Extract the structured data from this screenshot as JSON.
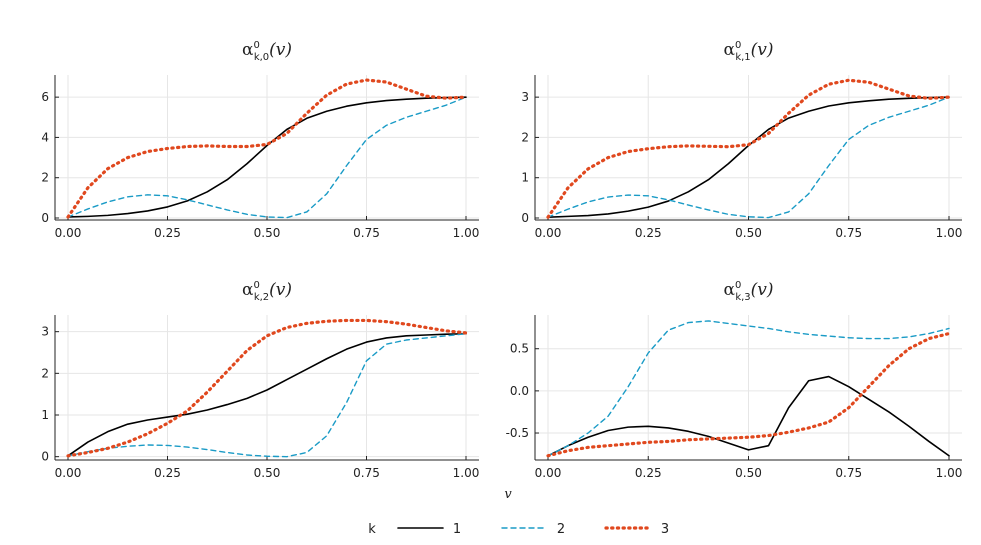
{
  "xlabel": "v",
  "legend": {
    "title": "k",
    "entries": [
      {
        "label": "1",
        "color": "#000000",
        "dash": "solid"
      },
      {
        "label": "2",
        "color": "#1a9bc6",
        "dash": "dashed"
      },
      {
        "label": "3",
        "color": "#e0481e",
        "dash": "dotted"
      }
    ]
  },
  "chart_data": [
    {
      "type": "line",
      "title_base": "α",
      "title_sup": "0",
      "title_sub": "k,0",
      "title_arg": "(v)",
      "xlim": [
        0,
        1
      ],
      "ylim": [
        -0.1,
        7.1
      ],
      "xticks": [
        0,
        0.25,
        0.5,
        0.75,
        1
      ],
      "xtick_labels": [
        "0.00",
        "0.25",
        "0.50",
        "0.75",
        "1.00"
      ],
      "yticks": [
        0,
        2,
        4,
        6
      ],
      "ytick_labels": [
        "0",
        "2",
        "4",
        "6"
      ],
      "x": [
        0,
        0.05,
        0.1,
        0.15,
        0.2,
        0.25,
        0.3,
        0.35,
        0.4,
        0.45,
        0.5,
        0.55,
        0.6,
        0.65,
        0.7,
        0.75,
        0.8,
        0.85,
        0.9,
        0.95,
        1.0
      ],
      "series": [
        {
          "name": "1",
          "values": [
            0.05,
            0.08,
            0.13,
            0.22,
            0.35,
            0.55,
            0.85,
            1.3,
            1.9,
            2.7,
            3.6,
            4.4,
            4.95,
            5.3,
            5.55,
            5.72,
            5.83,
            5.9,
            5.95,
            5.98,
            6.0
          ]
        },
        {
          "name": "2",
          "values": [
            0.05,
            0.45,
            0.8,
            1.05,
            1.15,
            1.1,
            0.9,
            0.65,
            0.4,
            0.18,
            0.05,
            0.02,
            0.3,
            1.2,
            2.6,
            3.9,
            4.6,
            5.0,
            5.3,
            5.6,
            6.0
          ]
        },
        {
          "name": "3",
          "values": [
            0.05,
            1.5,
            2.45,
            3.0,
            3.3,
            3.45,
            3.55,
            3.58,
            3.55,
            3.55,
            3.65,
            4.2,
            5.2,
            6.1,
            6.65,
            6.85,
            6.75,
            6.4,
            6.05,
            5.95,
            6.0
          ]
        }
      ]
    },
    {
      "type": "line",
      "title_base": "α",
      "title_sup": "0",
      "title_sub": "k,1",
      "title_arg": "(v)",
      "xlim": [
        0,
        1
      ],
      "ylim": [
        -0.05,
        3.55
      ],
      "xticks": [
        0,
        0.25,
        0.5,
        0.75,
        1
      ],
      "xtick_labels": [
        "0.00",
        "0.25",
        "0.50",
        "0.75",
        "1.00"
      ],
      "yticks": [
        0,
        1,
        2,
        3
      ],
      "ytick_labels": [
        "0",
        "1",
        "2",
        "3"
      ],
      "x": [
        0,
        0.05,
        0.1,
        0.15,
        0.2,
        0.25,
        0.3,
        0.35,
        0.4,
        0.45,
        0.5,
        0.55,
        0.6,
        0.65,
        0.7,
        0.75,
        0.8,
        0.85,
        0.9,
        0.95,
        1.0
      ],
      "series": [
        {
          "name": "1",
          "values": [
            0.02,
            0.04,
            0.06,
            0.1,
            0.17,
            0.27,
            0.42,
            0.65,
            0.95,
            1.35,
            1.8,
            2.2,
            2.48,
            2.65,
            2.78,
            2.86,
            2.91,
            2.95,
            2.97,
            2.99,
            3.0
          ]
        },
        {
          "name": "2",
          "values": [
            0.02,
            0.22,
            0.4,
            0.52,
            0.57,
            0.55,
            0.45,
            0.32,
            0.2,
            0.09,
            0.03,
            0.01,
            0.15,
            0.6,
            1.3,
            1.95,
            2.3,
            2.5,
            2.65,
            2.8,
            3.0
          ]
        },
        {
          "name": "3",
          "values": [
            0.02,
            0.75,
            1.22,
            1.5,
            1.65,
            1.72,
            1.77,
            1.79,
            1.78,
            1.77,
            1.82,
            2.1,
            2.6,
            3.05,
            3.32,
            3.42,
            3.37,
            3.2,
            3.03,
            2.97,
            3.0
          ]
        }
      ]
    },
    {
      "type": "line",
      "title_base": "α",
      "title_sup": "0",
      "title_sub": "k,2",
      "title_arg": "(v)",
      "xlim": [
        0,
        1
      ],
      "ylim": [
        -0.08,
        3.4
      ],
      "xticks": [
        0,
        0.25,
        0.5,
        0.75,
        1
      ],
      "xtick_labels": [
        "0.00",
        "0.25",
        "0.50",
        "0.75",
        "1.00"
      ],
      "yticks": [
        0,
        1,
        2,
        3
      ],
      "ytick_labels": [
        "0",
        "1",
        "2",
        "3"
      ],
      "x": [
        0,
        0.05,
        0.1,
        0.15,
        0.2,
        0.25,
        0.3,
        0.35,
        0.4,
        0.45,
        0.5,
        0.55,
        0.6,
        0.65,
        0.7,
        0.75,
        0.8,
        0.85,
        0.9,
        0.95,
        1.0
      ],
      "series": [
        {
          "name": "1",
          "values": [
            0.02,
            0.35,
            0.6,
            0.78,
            0.88,
            0.95,
            1.02,
            1.12,
            1.25,
            1.4,
            1.6,
            1.85,
            2.1,
            2.35,
            2.58,
            2.75,
            2.85,
            2.9,
            2.92,
            2.94,
            2.95
          ]
        },
        {
          "name": "2",
          "values": [
            0.02,
            0.12,
            0.2,
            0.25,
            0.28,
            0.27,
            0.23,
            0.17,
            0.1,
            0.04,
            0.01,
            0.0,
            0.1,
            0.5,
            1.3,
            2.3,
            2.7,
            2.8,
            2.85,
            2.9,
            2.95
          ]
        },
        {
          "name": "3",
          "values": [
            0.02,
            0.1,
            0.2,
            0.35,
            0.55,
            0.8,
            1.1,
            1.55,
            2.05,
            2.55,
            2.9,
            3.1,
            3.2,
            3.25,
            3.27,
            3.27,
            3.24,
            3.18,
            3.1,
            3.02,
            2.97
          ]
        }
      ]
    },
    {
      "type": "line",
      "title_base": "α",
      "title_sup": "0",
      "title_sub": "k,3",
      "title_arg": "(v)",
      "xlim": [
        0,
        1
      ],
      "ylim": [
        -0.82,
        0.9
      ],
      "xticks": [
        0,
        0.25,
        0.5,
        0.75,
        1
      ],
      "xtick_labels": [
        "0.00",
        "0.25",
        "0.50",
        "0.75",
        "1.00"
      ],
      "yticks": [
        -0.5,
        0,
        0.5
      ],
      "ytick_labels": [
        "-0.5",
        "0.0",
        "0.5"
      ],
      "x": [
        0,
        0.05,
        0.1,
        0.15,
        0.2,
        0.25,
        0.3,
        0.35,
        0.4,
        0.45,
        0.5,
        0.55,
        0.6,
        0.65,
        0.7,
        0.75,
        0.8,
        0.85,
        0.9,
        0.95,
        1.0
      ],
      "series": [
        {
          "name": "1",
          "values": [
            -0.77,
            -0.65,
            -0.55,
            -0.47,
            -0.43,
            -0.42,
            -0.44,
            -0.48,
            -0.54,
            -0.62,
            -0.7,
            -0.65,
            -0.2,
            0.12,
            0.17,
            0.05,
            -0.1,
            -0.25,
            -0.42,
            -0.6,
            -0.77
          ]
        },
        {
          "name": "2",
          "values": [
            -0.77,
            -0.65,
            -0.5,
            -0.3,
            0.05,
            0.45,
            0.72,
            0.81,
            0.83,
            0.8,
            0.77,
            0.74,
            0.7,
            0.67,
            0.65,
            0.63,
            0.62,
            0.62,
            0.64,
            0.68,
            0.74
          ]
        },
        {
          "name": "3",
          "values": [
            -0.77,
            -0.71,
            -0.67,
            -0.65,
            -0.63,
            -0.61,
            -0.6,
            -0.58,
            -0.57,
            -0.56,
            -0.55,
            -0.53,
            -0.49,
            -0.44,
            -0.37,
            -0.2,
            0.05,
            0.3,
            0.5,
            0.62,
            0.68
          ]
        }
      ]
    }
  ]
}
